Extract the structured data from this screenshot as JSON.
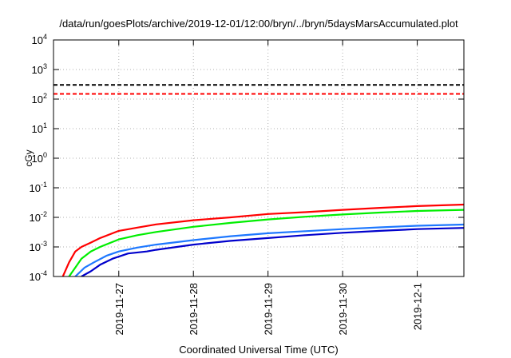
{
  "chart_data": {
    "type": "line",
    "title": "/data/run/goesPlots/archive/2019-12-01/12:00/bryn/../bryn/5daysMarsAccumulated.plot",
    "xlabel": "Coordinated Universal Time (UTC)",
    "ylabel": "cGy",
    "y_scale": "log",
    "ylim": [
      0.0001,
      10000
    ],
    "xlim": [
      "2019-11-26 03:00",
      "2019-12-01 15:00"
    ],
    "grid": true,
    "x_ticks": [
      "2019-11-27",
      "2019-11-28",
      "2019-11-29",
      "2019-11-30",
      "2019-12-1"
    ],
    "x_tick_values": [
      "2019-11-27 00:00",
      "2019-11-28 00:00",
      "2019-11-29 00:00",
      "2019-11-30 00:00",
      "2019-12-01 00:00"
    ],
    "y_ticks": [
      {
        "base": "10",
        "exp": "4",
        "value": 10000
      },
      {
        "base": "10",
        "exp": "3",
        "value": 1000
      },
      {
        "base": "10",
        "exp": "2",
        "value": 100
      },
      {
        "base": "10",
        "exp": "1",
        "value": 10
      },
      {
        "base": "10",
        "exp": "0",
        "value": 1
      },
      {
        "base": "10",
        "exp": "-1",
        "value": 0.1
      },
      {
        "base": "10",
        "exp": "-2",
        "value": 0.01
      },
      {
        "base": "10",
        "exp": "-3",
        "value": 0.001
      },
      {
        "base": "10",
        "exp": "-4",
        "value": 0.0001
      }
    ],
    "series": [
      {
        "color": "#000000",
        "dashed": true,
        "x": [
          "2019-11-26 03:00",
          "2019-12-01 15:00"
        ],
        "y": [
          300,
          300
        ]
      },
      {
        "color": "#ff0000",
        "dashed": true,
        "x": [
          "2019-11-26 03:00",
          "2019-12-01 15:00"
        ],
        "y": [
          150,
          150
        ]
      },
      {
        "color": "#ff0000",
        "dashed": false,
        "x": [
          "2019-11-26 06:00",
          "2019-11-26 08:00",
          "2019-11-26 10:00",
          "2019-11-26 12:00",
          "2019-11-26 15:00",
          "2019-11-26 18:00",
          "2019-11-27 00:00",
          "2019-11-27 06:00",
          "2019-11-27 12:00",
          "2019-11-28 00:00",
          "2019-11-28 12:00",
          "2019-11-29 00:00",
          "2019-11-29 12:00",
          "2019-11-30 00:00",
          "2019-11-30 12:00",
          "2019-12-01 00:00",
          "2019-12-01 15:00"
        ],
        "y": [
          0.0001,
          0.0003,
          0.0007,
          0.001,
          0.0014,
          0.002,
          0.0035,
          0.0045,
          0.0058,
          0.008,
          0.01,
          0.013,
          0.015,
          0.018,
          0.021,
          0.024,
          0.027
        ]
      },
      {
        "color": "#00ee00",
        "dashed": false,
        "x": [
          "2019-11-26 08:00",
          "2019-11-26 10:00",
          "2019-11-26 12:00",
          "2019-11-26 15:00",
          "2019-11-26 18:00",
          "2019-11-27 00:00",
          "2019-11-27 06:00",
          "2019-11-27 12:00",
          "2019-11-28 00:00",
          "2019-11-28 12:00",
          "2019-11-29 00:00",
          "2019-11-29 12:00",
          "2019-11-30 00:00",
          "2019-11-30 12:00",
          "2019-12-01 00:00",
          "2019-12-01 15:00"
        ],
        "y": [
          0.0001,
          0.0002,
          0.0004,
          0.0007,
          0.001,
          0.0018,
          0.0025,
          0.0032,
          0.0048,
          0.0065,
          0.0085,
          0.0105,
          0.0125,
          0.0145,
          0.0165,
          0.018
        ]
      },
      {
        "color": "#1e78ff",
        "dashed": false,
        "x": [
          "2019-11-26 10:00",
          "2019-11-26 13:00",
          "2019-11-26 16:00",
          "2019-11-26 20:00",
          "2019-11-27 00:00",
          "2019-11-27 06:00",
          "2019-11-27 12:00",
          "2019-11-28 00:00",
          "2019-11-28 12:00",
          "2019-11-29 00:00",
          "2019-11-29 12:00",
          "2019-11-30 00:00",
          "2019-11-30 12:00",
          "2019-12-01 00:00",
          "2019-12-01 15:00"
        ],
        "y": [
          0.0001,
          0.0002,
          0.0003,
          0.0005,
          0.0007,
          0.00095,
          0.0012,
          0.0017,
          0.0023,
          0.0029,
          0.0034,
          0.004,
          0.0046,
          0.0052,
          0.0057
        ]
      },
      {
        "color": "#0000cc",
        "dashed": false,
        "x": [
          "2019-11-26 12:00",
          "2019-11-26 15:00",
          "2019-11-26 18:00",
          "2019-11-26 22:00",
          "2019-11-27 03:00",
          "2019-11-27 09:00",
          "2019-11-27 12:00",
          "2019-11-28 00:00",
          "2019-11-28 12:00",
          "2019-11-29 00:00",
          "2019-11-29 12:00",
          "2019-11-30 00:00",
          "2019-11-30 12:00",
          "2019-12-01 00:00",
          "2019-12-01 15:00"
        ],
        "y": [
          0.0001,
          0.00015,
          0.00025,
          0.0004,
          0.0006,
          0.0007,
          0.0008,
          0.0012,
          0.0016,
          0.002,
          0.0025,
          0.003,
          0.0035,
          0.004,
          0.0044
        ]
      }
    ]
  }
}
